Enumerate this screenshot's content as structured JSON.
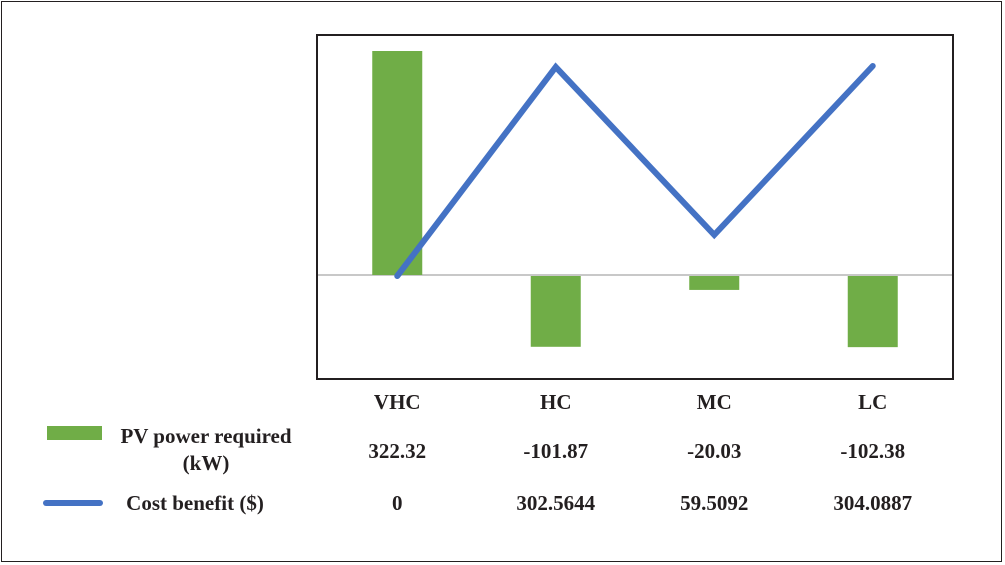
{
  "chart_data": {
    "type": "bar",
    "categories": [
      "VHC",
      "HC",
      "MC",
      "LC"
    ],
    "series": [
      {
        "name": "PV power required (kW)",
        "kind": "bar",
        "color": "#70ad47",
        "values": [
          322.32,
          -101.87,
          -20.03,
          -102.38
        ],
        "display": [
          "322.32",
          "-101.87",
          "-20.03",
          "-102.38"
        ]
      },
      {
        "name": "Cost benefit ($)",
        "kind": "line",
        "color": "#4472c4",
        "values": [
          0,
          302.5644,
          59.5092,
          304.0887
        ],
        "display": [
          "0",
          "302.5644",
          "59.5092",
          "304.0887"
        ]
      }
    ],
    "legend_placement": "data-table",
    "gridlines": false
  }
}
